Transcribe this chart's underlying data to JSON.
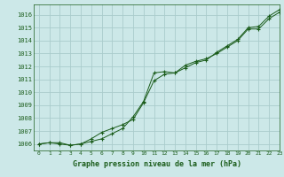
{
  "title": "Graphe pression niveau de la mer (hPa)",
  "bg_color": "#cce8e8",
  "grid_color": "#aacccc",
  "line_color": "#1a5c1a",
  "marker_color": "#1a5c1a",
  "xlim": [
    -0.5,
    23
  ],
  "ylim": [
    1005.5,
    1016.8
  ],
  "xticks": [
    0,
    1,
    2,
    3,
    4,
    5,
    6,
    7,
    8,
    9,
    10,
    11,
    12,
    13,
    14,
    15,
    16,
    17,
    18,
    19,
    20,
    21,
    22,
    23
  ],
  "yticks": [
    1006,
    1007,
    1008,
    1009,
    1010,
    1011,
    1012,
    1013,
    1014,
    1015,
    1016
  ],
  "series1": [
    1006.0,
    1006.1,
    1006.1,
    1005.9,
    1006.0,
    1006.2,
    1006.4,
    1006.8,
    1007.2,
    1008.1,
    1009.3,
    1011.5,
    1011.6,
    1011.5,
    1011.9,
    1012.3,
    1012.5,
    1013.1,
    1013.6,
    1014.1,
    1015.0,
    1015.1,
    1015.9,
    1016.4
  ],
  "series2": [
    1006.0,
    1006.1,
    1006.0,
    1005.9,
    1006.0,
    1006.4,
    1006.9,
    1007.2,
    1007.5,
    1007.9,
    1009.2,
    1010.9,
    1011.4,
    1011.5,
    1012.1,
    1012.4,
    1012.6,
    1013.0,
    1013.5,
    1014.0,
    1014.9,
    1014.9,
    1015.7,
    1016.2
  ]
}
